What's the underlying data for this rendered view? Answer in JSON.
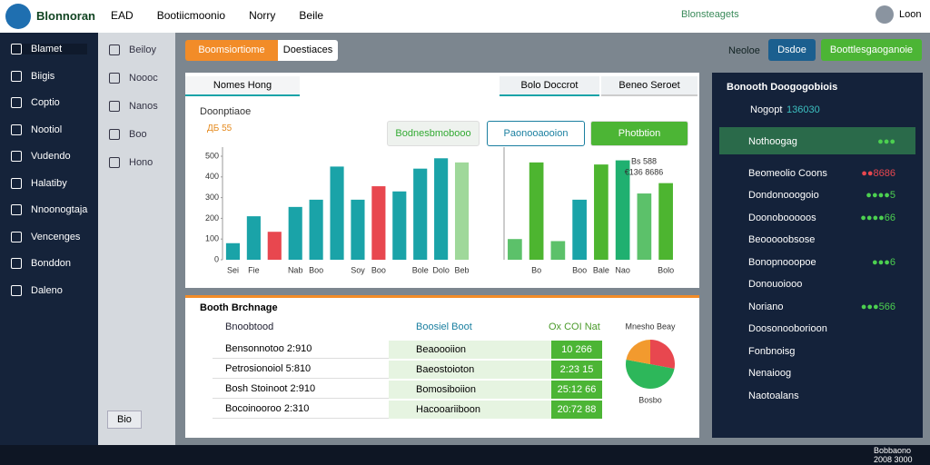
{
  "topbar": {
    "brand": "Blonnoran",
    "nav": [
      "EAD",
      "Bootiicmoonio",
      "Norry",
      "Beile"
    ],
    "status": "Blonsteagets",
    "user": "Loon"
  },
  "sidebar": [
    "Blamet",
    "Biigis",
    "Coptio",
    "Nootiol",
    "Vudendo",
    "Halatiby",
    "Nnoonogtaja",
    "Vencenges",
    "Bonddon",
    "Daleno"
  ],
  "subnav": {
    "items": [
      "Beiloy",
      "Noooc",
      "Nanos",
      "Boo",
      "Hono"
    ],
    "footer": "Bio"
  },
  "toolbar": {
    "primary": "Boomsiortiome",
    "secondary": "Doestiaces",
    "right_link": "Neoloe",
    "right_button": "Dsdoe",
    "action": "Boottlesgaoganoie"
  },
  "panel": {
    "tabs": [
      "Nomes Hong",
      "Bolo Doccrot",
      "Beneo Seroet"
    ],
    "label": "Doonptiaoe",
    "value": "ДБ 55",
    "filters": [
      "Bodnesbmobooo",
      "Paonooaooion",
      "Photbtion"
    ]
  },
  "chart_data": [
    {
      "type": "bar",
      "categories": [
        "Sei",
        "Fie",
        null,
        "Nab",
        "Boo",
        null,
        "Soy",
        "Boo",
        null,
        "Bole",
        "Dolo",
        "Beb"
      ],
      "values": [
        80,
        210,
        135,
        255,
        290,
        450,
        290,
        355,
        330,
        440,
        490,
        470
      ],
      "colors": [
        "#1aa3a8",
        "#1aa3a8",
        "#e8474f",
        "#1aa3a8",
        "#1aa3a8",
        "#1aa3a8",
        "#1aa3a8",
        "#e8474f",
        "#1aa3a8",
        "#1aa3a8",
        "#1aa3a8",
        "#9fd89a"
      ],
      "ylim": [
        0,
        500
      ],
      "yticks": [
        0,
        100,
        200,
        300,
        400,
        500
      ]
    },
    {
      "type": "bar",
      "categories": [
        null,
        "Bo",
        null,
        "Boo",
        "Bale",
        "Nao",
        null,
        "Bolo"
      ],
      "values": [
        100,
        470,
        90,
        290,
        460,
        480,
        320,
        370
      ],
      "colors": [
        "#5cc16a",
        "#4db530",
        "#5cc16a",
        "#1aa3a8",
        "#4db530",
        "#20b070",
        "#5cc16a",
        "#4db530"
      ],
      "ylim": [
        0,
        500
      ],
      "annotations": [
        "Bs 588",
        "€136 8686"
      ]
    },
    {
      "type": "pie",
      "title": "Mnesho Beay",
      "label": "Bosbo",
      "values": [
        28,
        50,
        22
      ],
      "colors": [
        "#e8474f",
        "#2db75a",
        "#f29a2e"
      ]
    }
  ],
  "breakdown": {
    "title": "Booth Brchnage",
    "left_title": "Bnoobtood",
    "left_rows": [
      "Bensonnotoo 2:910",
      "Petrosionoiol 5:810",
      "Bosh Stoinoot 2:910",
      "Bocoinooroo 2:310"
    ],
    "mid_title": "Boosiel Boot",
    "mid_note": "Ox COI Nat",
    "mid_rows": [
      [
        "Beaoooiion",
        "10 266"
      ],
      [
        "Baeostoioton",
        "2:23 15"
      ],
      [
        "Bomosiboiion",
        "25:12 66"
      ],
      [
        "Hacooariiboon",
        "20:72 88"
      ]
    ]
  },
  "rightpanel": {
    "title": "Bonooth Doogogobiois",
    "user": "Nogopt",
    "user_value": "136030",
    "rows": [
      [
        "Nothoogag",
        "●●●"
      ],
      [
        "Beomeolio Coons",
        "●●8686"
      ],
      [
        "Dondonooogoio",
        "●●●●5"
      ],
      [
        "Doonobooooos",
        "●●●●66"
      ],
      [
        "Beooooobsose",
        null
      ],
      [
        "Bonopnooopoe",
        "●●●6"
      ],
      [
        "Donouoiooo",
        null
      ],
      [
        "Noriano",
        "●●●566"
      ],
      [
        "Doosonooborioon",
        null
      ],
      [
        "Fonbnoisg",
        null
      ],
      [
        "Nenaioog",
        null
      ],
      [
        "Naotoalans",
        null
      ]
    ]
  },
  "taskbar": {
    "clock": "Bobbaono",
    "date": "2008 3000"
  }
}
